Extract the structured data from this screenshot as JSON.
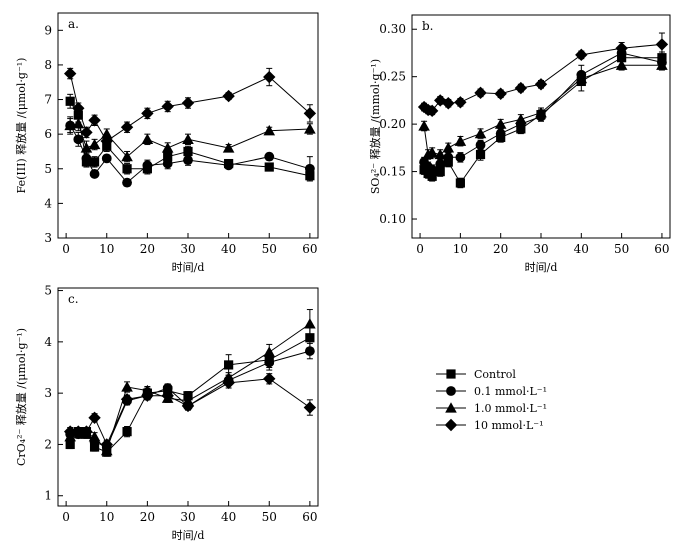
{
  "legend": {
    "items": [
      {
        "label": "Control",
        "marker": "square"
      },
      {
        "label": "0.1 mmol·L⁻¹",
        "marker": "circle"
      },
      {
        "label": "1.0 mmol·L⁻¹",
        "marker": "triangle"
      },
      {
        "label": "10 mmol·L⁻¹",
        "marker": "diamond"
      }
    ]
  },
  "chart_data": [
    {
      "type": "line",
      "panel_label": "a.",
      "title": "",
      "xlabel": "时间/d",
      "ylabel": "Fe(III) 释放量 /(μmol·g⁻¹)",
      "xlim": [
        -2,
        62
      ],
      "ylim": [
        3,
        9.5
      ],
      "xticks": [
        0,
        10,
        20,
        30,
        40,
        50,
        60
      ],
      "yticks": [
        3,
        4,
        5,
        6,
        7,
        8,
        9
      ],
      "ytick_labels": [
        "3",
        "4",
        "5",
        "6",
        "7",
        "8",
        "9"
      ],
      "x": [
        1,
        3,
        5,
        7,
        10,
        15,
        20,
        25,
        30,
        40,
        50,
        60
      ],
      "series": [
        {
          "name": "Control",
          "marker": "square",
          "values": [
            6.95,
            6.55,
            5.2,
            5.2,
            5.65,
            5.0,
            5.0,
            5.35,
            5.5,
            5.15,
            5.05,
            4.8
          ],
          "errors": [
            0.2,
            0.2,
            0.15,
            0.15,
            0.15,
            0.15,
            0.15,
            0.15,
            0.15,
            0.1,
            0.1,
            0.15
          ]
        },
        {
          "name": "0.1 mmol·L⁻¹",
          "marker": "circle",
          "values": [
            6.25,
            5.85,
            5.3,
            4.85,
            5.3,
            4.6,
            5.1,
            5.15,
            5.25,
            5.1,
            5.35,
            5.0
          ],
          "errors": [
            0.2,
            0.2,
            0.15,
            0.1,
            0.1,
            0.1,
            0.15,
            0.15,
            0.15,
            0.1,
            0.1,
            0.35
          ]
        },
        {
          "name": "1.0 mmol·L⁻¹",
          "marker": "triangle",
          "values": [
            6.25,
            6.3,
            5.6,
            5.7,
            6.0,
            5.35,
            5.85,
            5.6,
            5.85,
            5.6,
            6.1,
            6.15
          ],
          "errors": [
            0.25,
            0.2,
            0.2,
            0.15,
            0.15,
            0.15,
            0.15,
            0.15,
            0.15,
            0.1,
            0.1,
            0.15
          ]
        },
        {
          "name": "10 mmol·L⁻¹",
          "marker": "diamond",
          "values": [
            7.75,
            6.75,
            6.05,
            6.4,
            5.8,
            6.2,
            6.6,
            6.8,
            6.9,
            7.1,
            7.65,
            6.6
          ],
          "errors": [
            0.15,
            0.15,
            0.15,
            0.15,
            0.15,
            0.15,
            0.15,
            0.15,
            0.15,
            0.1,
            0.25,
            0.25
          ]
        }
      ]
    },
    {
      "type": "line",
      "panel_label": "b.",
      "title": "",
      "xlabel": "时间/d",
      "ylabel": "SO₄²⁻ 释放量 /(mmol·g⁻¹)",
      "xlim": [
        -2,
        62
      ],
      "ylim": [
        0.08,
        0.315
      ],
      "xticks": [
        0,
        10,
        20,
        30,
        40,
        50,
        60
      ],
      "yticks": [
        0.1,
        0.15,
        0.2,
        0.25,
        0.3
      ],
      "ytick_labels": [
        "0.10",
        "0.15",
        "0.20",
        "0.25",
        "0.30"
      ],
      "x": [
        1,
        2,
        3,
        5,
        7,
        10,
        15,
        20,
        25,
        30,
        40,
        50,
        60
      ],
      "series": [
        {
          "name": "Control",
          "marker": "square",
          "values": [
            0.152,
            0.148,
            0.145,
            0.15,
            0.16,
            0.138,
            0.168,
            0.186,
            0.195,
            0.21,
            0.245,
            0.27,
            0.27
          ],
          "errors": [
            0.005,
            0.005,
            0.005,
            0.005,
            0.005,
            0.005,
            0.006,
            0.005,
            0.005,
            0.005,
            0.01,
            0.008,
            0.006
          ]
        },
        {
          "name": "0.1 mmol·L⁻¹",
          "marker": "circle",
          "values": [
            0.16,
            0.155,
            0.152,
            0.158,
            0.165,
            0.165,
            0.178,
            0.19,
            0.2,
            0.208,
            0.252,
            0.275,
            0.265
          ],
          "errors": [
            0.005,
            0.005,
            0.005,
            0.005,
            0.005,
            0.005,
            0.005,
            0.005,
            0.005,
            0.005,
            0.01,
            0.005,
            0.005
          ]
        },
        {
          "name": "1.0 mmol·L⁻¹",
          "marker": "triangle",
          "values": [
            0.198,
            0.168,
            0.17,
            0.168,
            0.175,
            0.182,
            0.19,
            0.2,
            0.205,
            0.212,
            0.248,
            0.262,
            0.262
          ],
          "errors": [
            0.005,
            0.005,
            0.005,
            0.005,
            0.005,
            0.005,
            0.005,
            0.005,
            0.005,
            0.005,
            0.005,
            0.005,
            0.005
          ]
        },
        {
          "name": "10 mmol·L⁻¹",
          "marker": "diamond",
          "values": [
            0.218,
            0.215,
            0.214,
            0.225,
            0.222,
            0.223,
            0.233,
            0.232,
            0.238,
            0.242,
            0.273,
            0.28,
            0.284
          ],
          "errors": [
            0.004,
            0.004,
            0.004,
            0.004,
            0.004,
            0.004,
            0.004,
            0.004,
            0.004,
            0.004,
            0.004,
            0.006,
            0.012
          ]
        }
      ]
    },
    {
      "type": "line",
      "panel_label": "c.",
      "title": "",
      "xlabel": "时间/d",
      "ylabel": "CrO₄²⁻ 释放量 /(μmol·g⁻¹)",
      "xlim": [
        -2,
        62
      ],
      "ylim": [
        0.8,
        5.05
      ],
      "xticks": [
        0,
        10,
        20,
        30,
        40,
        50,
        60
      ],
      "yticks": [
        1,
        2,
        3,
        4,
        5
      ],
      "ytick_labels": [
        "1",
        "2",
        "3",
        "4",
        "5"
      ],
      "x": [
        1,
        3,
        5,
        7,
        10,
        15,
        20,
        25,
        30,
        40,
        50,
        60
      ],
      "series": [
        {
          "name": "Control",
          "marker": "square",
          "values": [
            2.0,
            2.25,
            2.25,
            1.95,
            1.85,
            2.25,
            3.0,
            3.05,
            2.95,
            3.55,
            3.65,
            4.08
          ],
          "errors": [
            0.08,
            0.08,
            0.08,
            0.08,
            0.08,
            0.1,
            0.1,
            0.08,
            0.08,
            0.2,
            0.15,
            0.2
          ]
        },
        {
          "name": "0.1 mmol·L⁻¹",
          "marker": "circle",
          "values": [
            2.2,
            2.2,
            2.25,
            2.05,
            1.95,
            2.85,
            2.95,
            3.1,
            2.75,
            3.25,
            3.6,
            3.82
          ],
          "errors": [
            0.08,
            0.08,
            0.08,
            0.08,
            0.08,
            0.08,
            0.08,
            0.08,
            0.08,
            0.1,
            0.15,
            0.15
          ]
        },
        {
          "name": "1.0 mmol·L⁻¹",
          "marker": "triangle",
          "values": [
            2.15,
            2.25,
            2.2,
            2.15,
            1.88,
            3.12,
            3.05,
            2.9,
            2.85,
            3.3,
            3.8,
            4.35
          ],
          "errors": [
            0.08,
            0.08,
            0.08,
            0.08,
            0.08,
            0.1,
            0.08,
            0.08,
            0.08,
            0.1,
            0.15,
            0.28
          ]
        },
        {
          "name": "10 mmol·L⁻¹",
          "marker": "diamond",
          "values": [
            2.25,
            2.25,
            2.25,
            2.52,
            2.0,
            2.88,
            2.95,
            2.95,
            2.75,
            3.2,
            3.28,
            2.72
          ],
          "errors": [
            0.08,
            0.08,
            0.08,
            0.08,
            0.08,
            0.08,
            0.08,
            0.08,
            0.08,
            0.1,
            0.1,
            0.15
          ]
        }
      ]
    }
  ]
}
